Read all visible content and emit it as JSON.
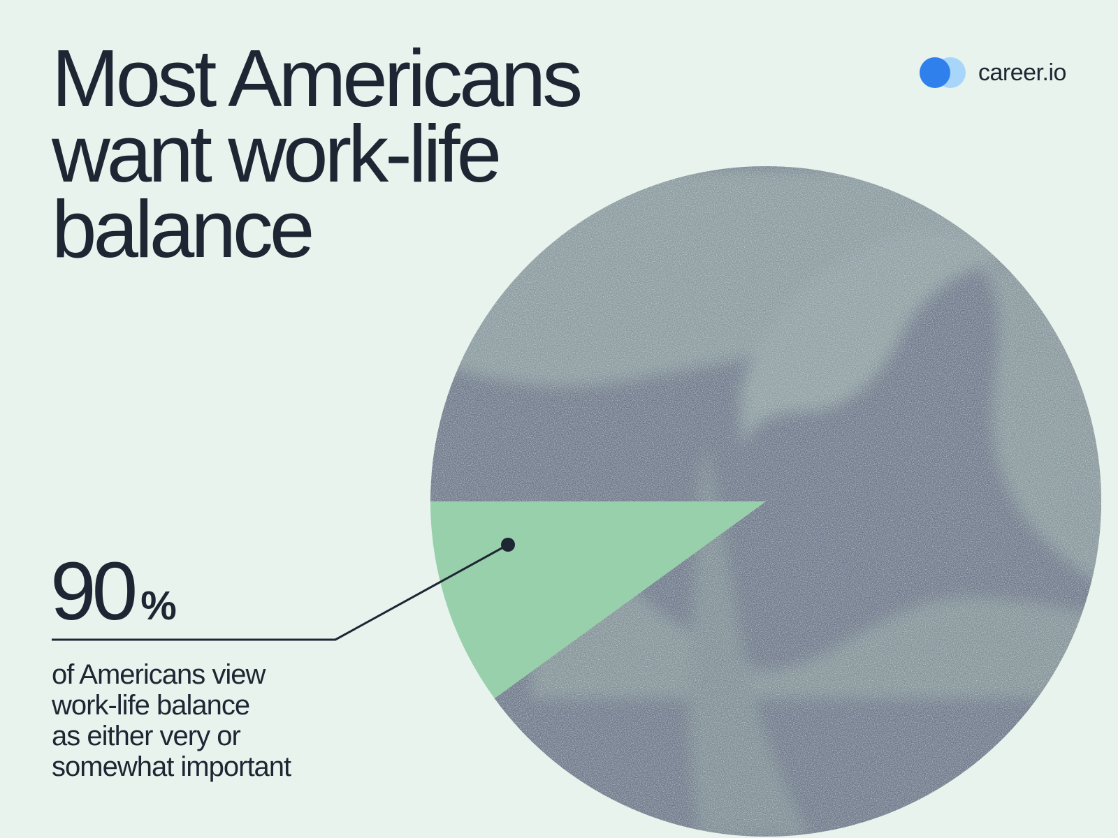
{
  "title_lines": [
    "Most Americans",
    "want work-life",
    "balance"
  ],
  "brand": {
    "name": "career.io",
    "colors": [
      "#2f80ed",
      "#a8d6fb"
    ]
  },
  "stat": {
    "value": "90",
    "unit": "%",
    "description_lines": [
      "of Americans view",
      "work-life balance",
      "as either very or",
      "somewhat important"
    ]
  },
  "colors": {
    "background": "#e7f3ec",
    "text": "#1e2533",
    "pie_main": "#6d7789",
    "pie_texture": "#9fb4ad",
    "highlight": "#97d0ab"
  },
  "chart_data": {
    "type": "pie",
    "slices": [
      {
        "value": 90,
        "color": "#6d7789"
      },
      {
        "value": 10,
        "color": "#97d0ab"
      }
    ]
  }
}
